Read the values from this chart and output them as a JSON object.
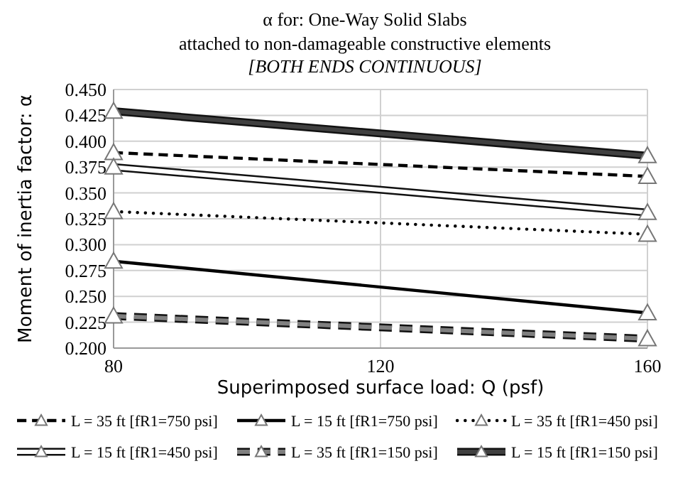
{
  "chart_data": {
    "type": "line",
    "title": "α for: One-Way Solid Slabs",
    "subtitle": "attached to non-damageable constructive elements",
    "annotations": [
      "[BOTH ENDS CONTINUOUS]"
    ],
    "xlabel": "Superimposed surface load: Q (psf)",
    "ylabel": "Moment of inertia factor: α",
    "x": [
      80,
      160
    ],
    "xlim": [
      80,
      160
    ],
    "xticks": [
      80,
      120,
      160
    ],
    "ylim": [
      0.2,
      0.45
    ],
    "yticks": [
      {
        "value": 0.2,
        "label": "0.200"
      },
      {
        "value": 0.225,
        "label": "0.225"
      },
      {
        "value": 0.25,
        "label": "0.250"
      },
      {
        "value": 0.275,
        "label": "0.275"
      },
      {
        "value": 0.3,
        "label": "0.300"
      },
      {
        "value": 0.325,
        "label": "0.325"
      },
      {
        "value": 0.35,
        "label": "0.350"
      },
      {
        "value": 0.375,
        "label": "0.375"
      },
      {
        "value": 0.4,
        "label": "0.400"
      },
      {
        "value": 0.425,
        "label": "0.425"
      },
      {
        "value": 0.45,
        "label": "0.450"
      }
    ],
    "grid": true,
    "legend": "bottom",
    "marker": "triangle",
    "series": [
      {
        "name": "L = 35 ft [fR1=750 psi]",
        "color": "#000000",
        "line_style": "dashed",
        "values": [
          0.389,
          0.366
        ]
      },
      {
        "name": "L = 15 ft [fR1=750 psi]",
        "color": "#000000",
        "line_style": "solid",
        "values": [
          0.284,
          0.234
        ]
      },
      {
        "name": "L = 35 ft [fR1=450 psi]",
        "color": "#000000",
        "line_style": "dotted",
        "values": [
          0.332,
          0.31
        ]
      },
      {
        "name": "L = 15 ft [fR1=450 psi]",
        "color": "#ffffff",
        "line_style": "solid",
        "values": [
          0.375,
          0.331
        ]
      },
      {
        "name": "L = 35 ft [fR1=150 psi]",
        "color": "#808080",
        "line_style": "dashed",
        "values": [
          0.231,
          0.209
        ]
      },
      {
        "name": "L = 15 ft [fR1=150 psi]",
        "color": "#404040",
        "line_style": "solid",
        "values": [
          0.429,
          0.386
        ]
      }
    ]
  }
}
